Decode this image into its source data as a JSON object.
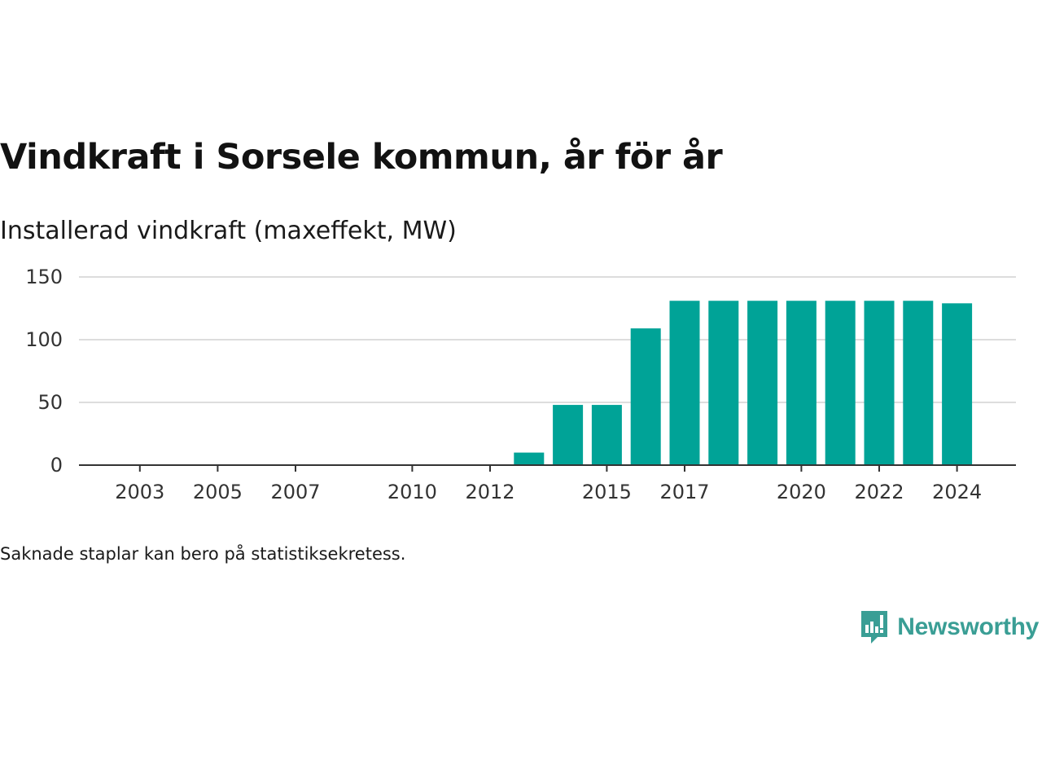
{
  "header": {
    "title": "Vindkraft i Sorsele kommun, år för år",
    "subtitle": "Installerad vindkraft (maxeffekt, MW)"
  },
  "footer": {
    "note": "Saknade staplar kan bero på statistiksekretess.",
    "brand": "Newsworthy",
    "brand_icon": "bar-chart-speech-bubble-icon"
  },
  "colors": {
    "bar": "#00a397",
    "grid": "#dddddd",
    "axis": "#333333",
    "brand": "#3a9e95"
  },
  "chart_data": {
    "type": "bar",
    "title": "Vindkraft i Sorsele kommun, år för år",
    "ylabel": "Installerad vindkraft (maxeffekt, MW)",
    "xlabel": "",
    "categories": [
      2002,
      2003,
      2004,
      2005,
      2006,
      2007,
      2008,
      2009,
      2010,
      2011,
      2012,
      2013,
      2014,
      2015,
      2016,
      2017,
      2018,
      2019,
      2020,
      2021,
      2022,
      2023,
      2024
    ],
    "values": [
      null,
      null,
      null,
      null,
      null,
      null,
      null,
      null,
      null,
      null,
      null,
      10,
      48,
      48,
      109,
      131,
      131,
      131,
      131,
      131,
      131,
      131,
      129
    ],
    "x_ticks": [
      "2003",
      "2005",
      "2007",
      "2010",
      "2012",
      "2015",
      "2017",
      "2020",
      "2022",
      "2024"
    ],
    "y_ticks": [
      "0",
      "50",
      "100",
      "150"
    ],
    "ylim": [
      0,
      150
    ],
    "grid": true,
    "legend": "none"
  }
}
